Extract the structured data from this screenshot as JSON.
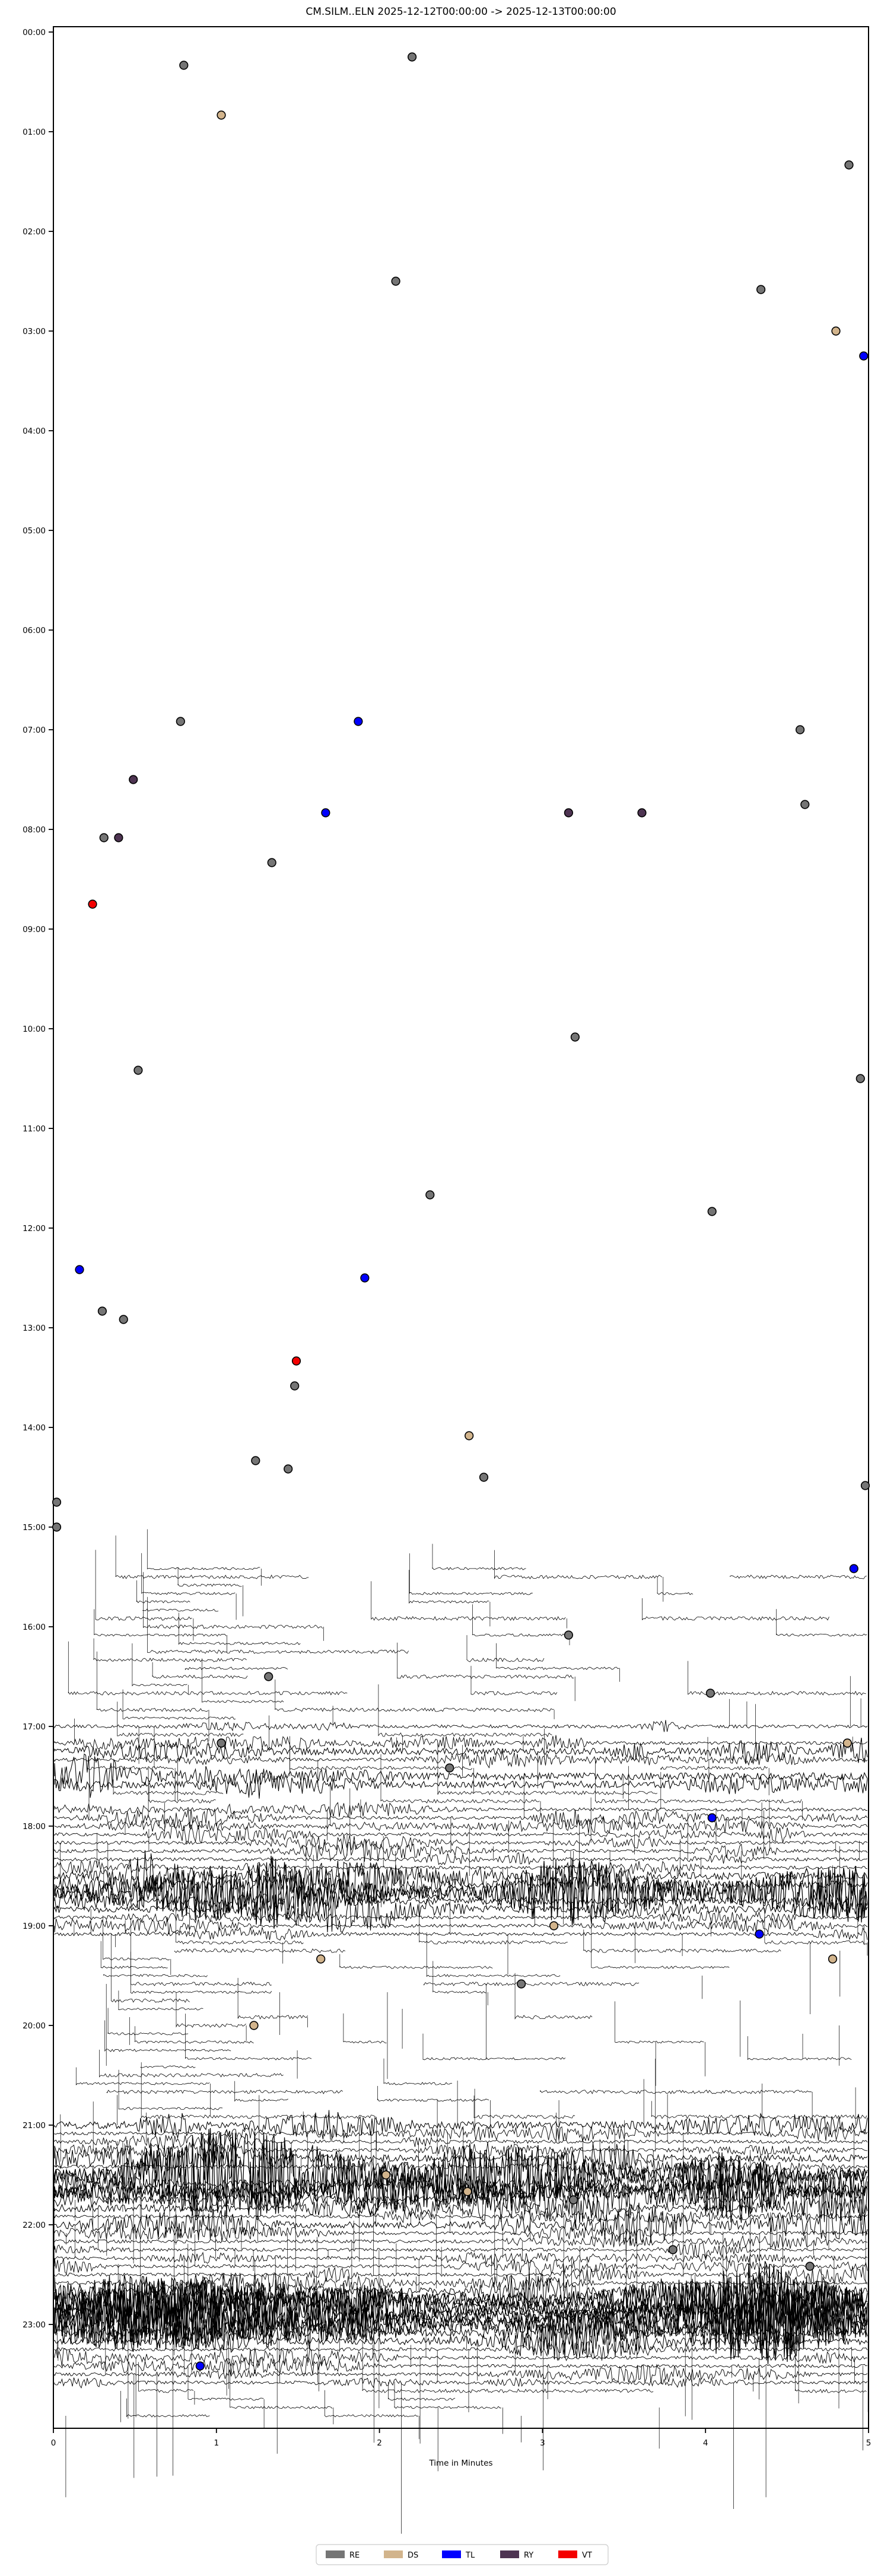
{
  "header": {
    "title": "CM.SILM..ELN  2025-12-12T00:00:00 -> 2025-12-13T00:00:00"
  },
  "axes": {
    "xlabel": "Time in Minutes",
    "x_ticks": [
      "0",
      "1",
      "2",
      "3",
      "4",
      "5"
    ],
    "y_ticks": [
      "00:00",
      "01:00",
      "02:00",
      "03:00",
      "04:00",
      "05:00",
      "06:00",
      "07:00",
      "08:00",
      "09:00",
      "10:00",
      "11:00",
      "12:00",
      "13:00",
      "14:00",
      "15:00",
      "16:00",
      "17:00",
      "18:00",
      "19:00",
      "20:00",
      "21:00",
      "22:00",
      "23:00"
    ]
  },
  "legend": {
    "items": [
      {
        "label": "RE",
        "color": "#757575"
      },
      {
        "label": "DS",
        "color": "#d2b48c"
      },
      {
        "label": "TL",
        "color": "#0000ff"
      },
      {
        "label": "RY",
        "color": "#4e3452"
      },
      {
        "label": "VT",
        "color": "#f40000"
      }
    ]
  },
  "chart_data": {
    "type": "line",
    "subtype": "helicorder-dayplot",
    "station": "CM.SILM..ELN",
    "start": "2025-12-12T00:00:00",
    "end": "2025-12-13T00:00:00",
    "title": "CM.SILM..ELN  2025-12-12T00:00:00 -> 2025-12-13T00:00:00",
    "xlabel": "Time in Minutes",
    "xlim": [
      0,
      5
    ],
    "minutes_per_row": 5,
    "rows_per_hour": 12,
    "total_rows": 288,
    "trace_color": "#000000",
    "marker_edge_color": "#000000",
    "legend_position": "lower center",
    "event_classes": {
      "RE": "#757575",
      "DS": "#d2b48c",
      "TL": "#0000ff",
      "RY": "#4e3452",
      "VT": "#f40000"
    },
    "events": [
      [
        3,
        2.2,
        "RE"
      ],
      [
        4,
        0.8,
        "RE"
      ],
      [
        10,
        1.03,
        "DS"
      ],
      [
        16,
        4.88,
        "RE"
      ],
      [
        30,
        2.1,
        "RE"
      ],
      [
        31,
        4.34,
        "RE"
      ],
      [
        36,
        4.8,
        "DS"
      ],
      [
        39,
        4.97,
        "TL"
      ],
      [
        83,
        0.78,
        "RE"
      ],
      [
        83,
        1.87,
        "TL"
      ],
      [
        84,
        4.58,
        "RE"
      ],
      [
        90,
        0.49,
        "RY"
      ],
      [
        93,
        4.61,
        "RE"
      ],
      [
        94,
        1.67,
        "TL"
      ],
      [
        94,
        3.16,
        "RY"
      ],
      [
        94,
        3.61,
        "RY"
      ],
      [
        97,
        0.31,
        "RE"
      ],
      [
        97,
        0.4,
        "RY"
      ],
      [
        100,
        1.34,
        "RE"
      ],
      [
        105,
        0.24,
        "VT"
      ],
      [
        121,
        3.2,
        "RE"
      ],
      [
        125,
        0.52,
        "RE"
      ],
      [
        126,
        4.95,
        "RE"
      ],
      [
        140,
        2.31,
        "RE"
      ],
      [
        142,
        4.04,
        "RE"
      ],
      [
        149,
        0.16,
        "TL"
      ],
      [
        150,
        1.91,
        "TL"
      ],
      [
        154,
        0.3,
        "RE"
      ],
      [
        155,
        0.43,
        "RE"
      ],
      [
        160,
        1.49,
        "VT"
      ],
      [
        163,
        1.48,
        "RE"
      ],
      [
        169,
        2.55,
        "DS"
      ],
      [
        172,
        1.24,
        "RE"
      ],
      [
        173,
        1.44,
        "RE"
      ],
      [
        174,
        2.64,
        "RE"
      ],
      [
        175,
        4.98,
        "RE"
      ],
      [
        177,
        0.02,
        "RE"
      ],
      [
        180,
        0.02,
        "RE"
      ],
      [
        185,
        4.91,
        "TL"
      ],
      [
        193,
        3.16,
        "RE"
      ],
      [
        198,
        1.32,
        "RE"
      ],
      [
        200,
        4.03,
        "RE"
      ],
      [
        206,
        1.03,
        "RE"
      ],
      [
        206,
        4.87,
        "DS"
      ],
      [
        209,
        2.43,
        "RE"
      ],
      [
        215,
        4.04,
        "TL"
      ],
      [
        228,
        3.07,
        "DS"
      ],
      [
        229,
        4.33,
        "TL"
      ],
      [
        232,
        1.64,
        "DS"
      ],
      [
        232,
        4.78,
        "DS"
      ],
      [
        235,
        2.87,
        "RE"
      ],
      [
        240,
        1.23,
        "DS"
      ],
      [
        258,
        2.04,
        "DS"
      ],
      [
        260,
        2.54,
        "DS"
      ],
      [
        261,
        3.19,
        "RE"
      ],
      [
        267,
        3.8,
        "RE"
      ],
      [
        269,
        4.64,
        "RE"
      ],
      [
        281,
        0.9,
        "TL"
      ]
    ],
    "activity_levels_runs": [
      [
        0,
        184,
        0
      ],
      [
        185,
        185,
        1
      ],
      [
        186,
        186,
        2
      ],
      [
        187,
        190,
        1
      ],
      [
        191,
        192,
        2
      ],
      [
        193,
        194,
        1
      ],
      [
        195,
        196,
        2
      ],
      [
        197,
        197,
        1
      ],
      [
        198,
        198,
        2
      ],
      [
        199,
        199,
        1
      ],
      [
        200,
        200,
        2
      ],
      [
        201,
        201,
        1
      ],
      [
        202,
        202,
        2
      ],
      [
        203,
        203,
        1
      ],
      [
        204,
        204,
        3
      ],
      [
        205,
        205,
        2
      ],
      [
        206,
        206,
        3
      ],
      [
        207,
        207,
        4
      ],
      [
        208,
        208,
        3
      ],
      [
        209,
        209,
        2
      ],
      [
        210,
        211,
        4
      ],
      [
        212,
        213,
        2
      ],
      [
        214,
        221,
        3
      ],
      [
        222,
        223,
        4
      ],
      [
        224,
        224,
        5
      ],
      [
        225,
        226,
        4
      ],
      [
        227,
        229,
        3
      ],
      [
        230,
        231,
        2
      ],
      [
        232,
        234,
        1
      ],
      [
        235,
        235,
        2
      ],
      [
        236,
        236,
        1
      ],
      [
        237,
        237,
        2
      ],
      [
        238,
        238,
        1
      ],
      [
        239,
        240,
        2
      ],
      [
        241,
        245,
        1
      ],
      [
        246,
        246,
        2
      ],
      [
        247,
        247,
        1
      ],
      [
        248,
        248,
        2
      ],
      [
        249,
        250,
        1
      ],
      [
        251,
        251,
        2
      ],
      [
        252,
        252,
        4
      ],
      [
        253,
        255,
        3
      ],
      [
        256,
        256,
        4
      ],
      [
        257,
        257,
        3
      ],
      [
        258,
        258,
        5
      ],
      [
        259,
        259,
        4
      ],
      [
        260,
        260,
        5
      ],
      [
        261,
        262,
        4
      ],
      [
        263,
        263,
        3
      ],
      [
        264,
        264,
        4
      ],
      [
        265,
        271,
        3
      ],
      [
        272,
        272,
        4
      ],
      [
        273,
        276,
        5
      ],
      [
        277,
        278,
        4
      ],
      [
        279,
        283,
        3
      ],
      [
        284,
        284,
        2
      ],
      [
        285,
        287,
        1
      ]
    ]
  }
}
